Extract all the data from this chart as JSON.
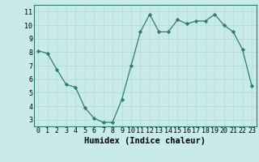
{
  "x": [
    0,
    1,
    2,
    3,
    4,
    5,
    6,
    7,
    8,
    9,
    10,
    11,
    12,
    13,
    14,
    15,
    16,
    17,
    18,
    19,
    20,
    21,
    22,
    23
  ],
  "y": [
    8.1,
    7.9,
    6.7,
    5.6,
    5.4,
    3.9,
    3.1,
    2.8,
    2.8,
    4.5,
    7.0,
    9.5,
    10.8,
    9.5,
    9.5,
    10.4,
    10.1,
    10.3,
    10.3,
    10.8,
    10.0,
    9.5,
    8.2,
    5.5
  ],
  "line_color": "#2e7d6e",
  "marker_color": "#2e7d6e",
  "bg_color": "#c8eaea",
  "grid_color": "#b0d8d8",
  "xlabel": "Humidex (Indice chaleur)",
  "ylim": [
    2.5,
    11.5
  ],
  "xlim": [
    -0.5,
    23.5
  ],
  "yticks": [
    3,
    4,
    5,
    6,
    7,
    8,
    9,
    10,
    11
  ],
  "xticks": [
    0,
    1,
    2,
    3,
    4,
    5,
    6,
    7,
    8,
    9,
    10,
    11,
    12,
    13,
    14,
    15,
    16,
    17,
    18,
    19,
    20,
    21,
    22,
    23
  ],
  "tick_fontsize": 6,
  "xlabel_fontsize": 7.5,
  "xlabel_fontweight": "bold",
  "border_color": "#2e7d6e"
}
